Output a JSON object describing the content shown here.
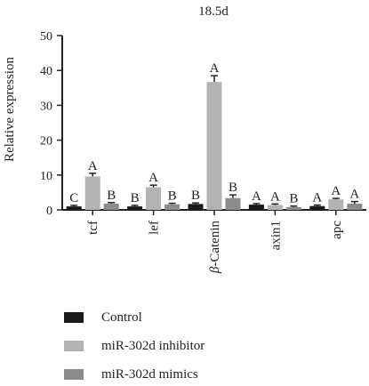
{
  "chart_data": {
    "type": "bar",
    "title": "18.5d",
    "ylabel": "Relative expression",
    "xlabel": "",
    "ylim": [
      0,
      50
    ],
    "yticks": [
      "0",
      "10",
      "20",
      "30",
      "40",
      "50"
    ],
    "categories": [
      "tcf",
      "lef",
      "β-Catenin",
      "axin1",
      "apc"
    ],
    "series": [
      {
        "name": "Control",
        "color": "#1a1a1a",
        "values": [
          1.0,
          1.0,
          1.7,
          1.5,
          1.1
        ],
        "errors": [
          0.3,
          0.3,
          0.3,
          0.3,
          0.3
        ],
        "labels": [
          "C",
          "B",
          "B",
          "A",
          "A"
        ]
      },
      {
        "name": "miR-302d inhibitor",
        "color": "#b3b3b3",
        "values": [
          9.6,
          6.5,
          36.7,
          1.4,
          3.0
        ],
        "errors": [
          0.9,
          0.6,
          1.8,
          0.3,
          0.3
        ],
        "labels": [
          "A",
          "A",
          "A",
          "A",
          "A"
        ]
      },
      {
        "name": "miR-302d mimics",
        "color": "#8c8c8c",
        "values": [
          1.8,
          1.6,
          3.4,
          0.8,
          1.8
        ],
        "errors": [
          0.3,
          0.3,
          0.9,
          0.3,
          0.6
        ],
        "labels": [
          "B",
          "B",
          "B",
          "B",
          "A"
        ]
      }
    ],
    "legend_position": "bottom"
  }
}
